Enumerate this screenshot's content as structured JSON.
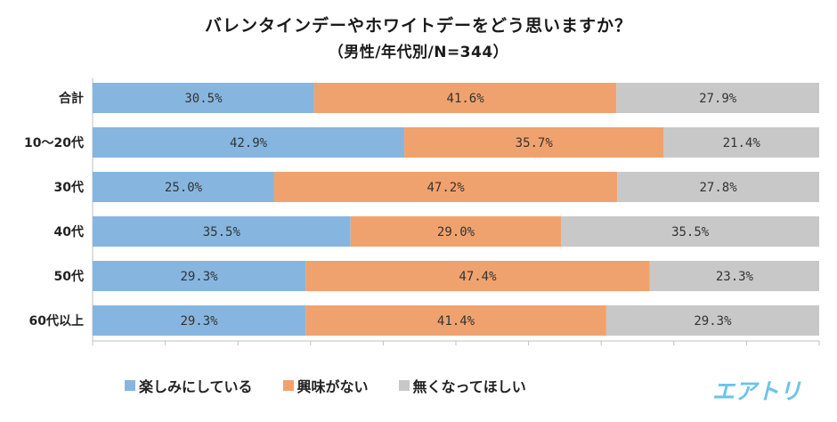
{
  "chart_data": {
    "type": "bar",
    "orientation": "horizontal",
    "stacked": true,
    "percent": true,
    "title": "バレンタインデーやホワイトデーをどう思いますか？",
    "subtitle": "（男性/年代別/N=344）",
    "categories": [
      "合計",
      "10～20代",
      "30代",
      "40代",
      "50代",
      "60代以上"
    ],
    "series": [
      {
        "name": "楽しみにしている",
        "color": "#86b6df",
        "values": [
          30.5,
          42.9,
          25.0,
          35.5,
          29.3,
          29.3
        ],
        "labels": [
          "30.5%",
          "42.9%",
          "25.0%",
          "35.5%",
          "29.3%",
          "29.3%"
        ]
      },
      {
        "name": "興味がない",
        "color": "#f0a26e",
        "values": [
          41.6,
          35.7,
          47.2,
          29.0,
          47.4,
          41.4
        ],
        "labels": [
          "41.6%",
          "35.7%",
          "47.2%",
          "29.0%",
          "47.4%",
          "41.4%"
        ]
      },
      {
        "name": "無くなってほしい",
        "color": "#c8c8c8",
        "values": [
          27.9,
          21.4,
          27.8,
          35.5,
          23.3,
          29.3
        ],
        "labels": [
          "27.9%",
          "21.4%",
          "27.8%",
          "35.5%",
          "23.3%",
          "29.3%"
        ]
      }
    ],
    "xlim": [
      0,
      100
    ],
    "grid": false,
    "legend_position": "bottom"
  },
  "logo_text": "エアトリ"
}
